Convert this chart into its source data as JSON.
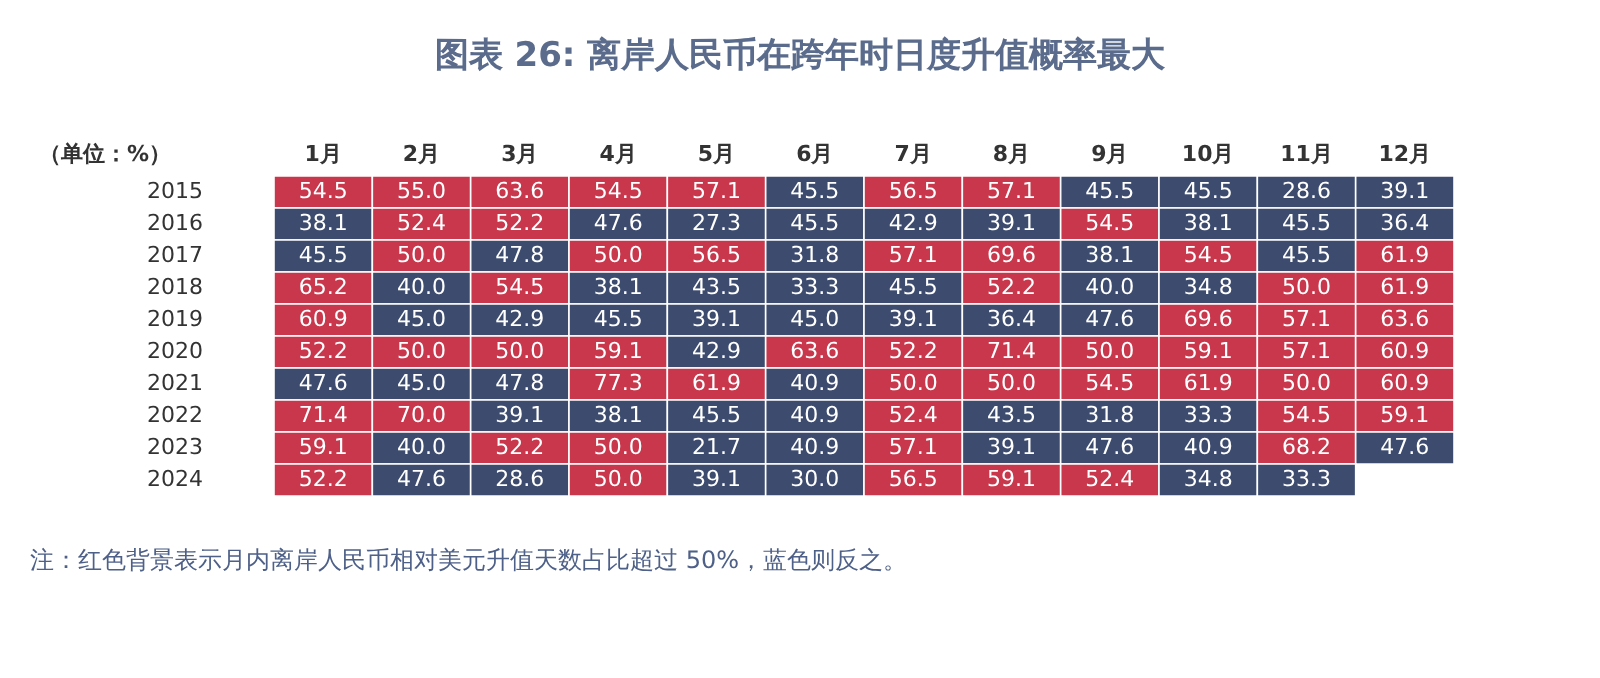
{
  "chart_data": {
    "type": "heatmap",
    "title": "图表 26: 离岸人民币在跨年时日度升值概率最大",
    "ylabel": "（单位：%）",
    "categories": [
      "1月",
      "2月",
      "3月",
      "4月",
      "5月",
      "6月",
      "7月",
      "8月",
      "9月",
      "10月",
      "11月",
      "12月"
    ],
    "y_categories": [
      "2015",
      "2016",
      "2017",
      "2018",
      "2019",
      "2020",
      "2021",
      "2022",
      "2023",
      "2024"
    ],
    "cells": [
      [
        54.5,
        55.0,
        63.6,
        54.5,
        57.1,
        45.5,
        56.5,
        57.1,
        45.5,
        45.5,
        28.6,
        39.1
      ],
      [
        38.1,
        52.4,
        52.2,
        47.6,
        27.3,
        45.5,
        42.9,
        39.1,
        54.5,
        38.1,
        45.5,
        36.4
      ],
      [
        45.5,
        50.0,
        47.8,
        50.0,
        56.5,
        31.8,
        57.1,
        69.6,
        38.1,
        54.5,
        45.5,
        61.9
      ],
      [
        65.2,
        40.0,
        54.5,
        38.1,
        43.5,
        33.3,
        45.5,
        52.2,
        40.0,
        34.8,
        50.0,
        61.9
      ],
      [
        60.9,
        45.0,
        42.9,
        45.5,
        39.1,
        45.0,
        39.1,
        36.4,
        47.6,
        69.6,
        57.1,
        63.6
      ],
      [
        52.2,
        50.0,
        50.0,
        59.1,
        42.9,
        63.6,
        52.2,
        71.4,
        50.0,
        59.1,
        57.1,
        60.9
      ],
      [
        47.6,
        45.0,
        47.8,
        77.3,
        61.9,
        40.9,
        50.0,
        50.0,
        54.5,
        61.9,
        50.0,
        60.9
      ],
      [
        71.4,
        70.0,
        39.1,
        38.1,
        45.5,
        40.9,
        52.4,
        43.5,
        31.8,
        33.3,
        54.5,
        59.1
      ],
      [
        59.1,
        40.0,
        52.2,
        50.0,
        21.7,
        40.9,
        57.1,
        39.1,
        47.6,
        40.9,
        68.2,
        47.6
      ],
      [
        52.2,
        47.6,
        28.6,
        50.0,
        39.1,
        30.0,
        56.5,
        59.1,
        52.4,
        34.8,
        33.3,
        null
      ]
    ],
    "colors": [
      [
        "#c8374b",
        "#c8374b",
        "#c8374b",
        "#c8374b",
        "#c8374b",
        "#3c4b6e",
        "#c8374b",
        "#c8374b",
        "#3c4b6e",
        "#3c4b6e",
        "#3c4b6e",
        "#3c4b6e"
      ],
      [
        "#3c4b6e",
        "#c8374b",
        "#c8374b",
        "#3c4b6e",
        "#3c4b6e",
        "#3c4b6e",
        "#3c4b6e",
        "#3c4b6e",
        "#c8374b",
        "#3c4b6e",
        "#3c4b6e",
        "#3c4b6e"
      ],
      [
        "#3c4b6e",
        "#c8374b",
        "#3c4b6e",
        "#c8374b",
        "#c8374b",
        "#3c4b6e",
        "#c8374b",
        "#c8374b",
        "#3c4b6e",
        "#c8374b",
        "#3c4b6e",
        "#c8374b"
      ],
      [
        "#c8374b",
        "#3c4b6e",
        "#c8374b",
        "#3c4b6e",
        "#3c4b6e",
        "#3c4b6e",
        "#3c4b6e",
        "#c8374b",
        "#3c4b6e",
        "#3c4b6e",
        "#c8374b",
        "#c8374b"
      ],
      [
        "#c8374b",
        "#3c4b6e",
        "#3c4b6e",
        "#3c4b6e",
        "#3c4b6e",
        "#3c4b6e",
        "#3c4b6e",
        "#3c4b6e",
        "#3c4b6e",
        "#c8374b",
        "#c8374b",
        "#c8374b"
      ],
      [
        "#c8374b",
        "#c8374b",
        "#c8374b",
        "#c8374b",
        "#3c4b6e",
        "#c8374b",
        "#c8374b",
        "#c8374b",
        "#c8374b",
        "#c8374b",
        "#c8374b",
        "#c8374b"
      ],
      [
        "#3c4b6e",
        "#3c4b6e",
        "#3c4b6e",
        "#c8374b",
        "#c8374b",
        "#3c4b6e",
        "#c8374b",
        "#c8374b",
        "#c8374b",
        "#c8374b",
        "#c8374b",
        "#c8374b"
      ],
      [
        "#c8374b",
        "#c8374b",
        "#3c4b6e",
        "#3c4b6e",
        "#3c4b6e",
        "#3c4b6e",
        "#c8374b",
        "#3c4b6e",
        "#3c4b6e",
        "#3c4b6e",
        "#c8374b",
        "#c8374b"
      ],
      [
        "#c8374b",
        "#3c4b6e",
        "#c8374b",
        "#c8374b",
        "#3c4b6e",
        "#3c4b6e",
        "#c8374b",
        "#3c4b6e",
        "#3c4b6e",
        "#3c4b6e",
        "#c8374b",
        "#3c4b6e"
      ],
      [
        "#c8374b",
        "#3c4b6e",
        "#3c4b6e",
        "#c8374b",
        "#3c4b6e",
        "#3c4b6e",
        "#c8374b",
        "#c8374b",
        "#c8374b",
        "#3c4b6e",
        "#3c4b6e",
        null
      ]
    ],
    "cell_labels": [
      [
        "54.5",
        "55.0",
        "63.6",
        "54.5",
        "57.1",
        "45.5",
        "56.5",
        "57.1",
        "45.5",
        "45.5",
        "28.6",
        "39.1"
      ],
      [
        "38.1",
        "52.4",
        "52.2",
        "47.6",
        "27.3",
        "45.5",
        "42.9",
        "39.1",
        "54.5",
        "38.1",
        "45.5",
        "36.4"
      ],
      [
        "45.5",
        "50.0",
        "47.8",
        "50.0",
        "56.5",
        "31.8",
        "57.1",
        "69.6",
        "38.1",
        "54.5",
        "45.5",
        "61.9"
      ],
      [
        "65.2",
        "40.0",
        "54.5",
        "38.1",
        "43.5",
        "33.3",
        "45.5",
        "52.2",
        "40.0",
        "34.8",
        "50.0",
        "61.9"
      ],
      [
        "60.9",
        "45.0",
        "42.9",
        "45.5",
        "39.1",
        "45.0",
        "39.1",
        "36.4",
        "47.6",
        "69.6",
        "57.1",
        "63.6"
      ],
      [
        "52.2",
        "50.0",
        "50.0",
        "59.1",
        "42.9",
        "63.6",
        "52.2",
        "71.4",
        "50.0",
        "59.1",
        "57.1",
        "60.9"
      ],
      [
        "47.6",
        "45.0",
        "47.8",
        "77.3",
        "61.9",
        "40.9",
        "50.0",
        "50.0",
        "54.5",
        "61.9",
        "50.0",
        "60.9"
      ],
      [
        "71.4",
        "70.0",
        "39.1",
        "38.1",
        "45.5",
        "40.9",
        "52.4",
        "43.5",
        "31.8",
        "33.3",
        "54.5",
        "59.1"
      ],
      [
        "59.1",
        "40.0",
        "52.2",
        "50.0",
        "21.7",
        "40.9",
        "57.1",
        "39.1",
        "47.6",
        "40.9",
        "68.2",
        "47.6"
      ],
      [
        "52.2",
        "47.6",
        "28.6",
        "50.0",
        "39.1",
        "30.0",
        "56.5",
        "59.1",
        "52.4",
        "34.8",
        "33.3",
        null
      ]
    ],
    "annotations": [
      "注：红色背景表示月内离岸人民币相对美元升值天数占比超过 50%，蓝色则反之。"
    ]
  }
}
